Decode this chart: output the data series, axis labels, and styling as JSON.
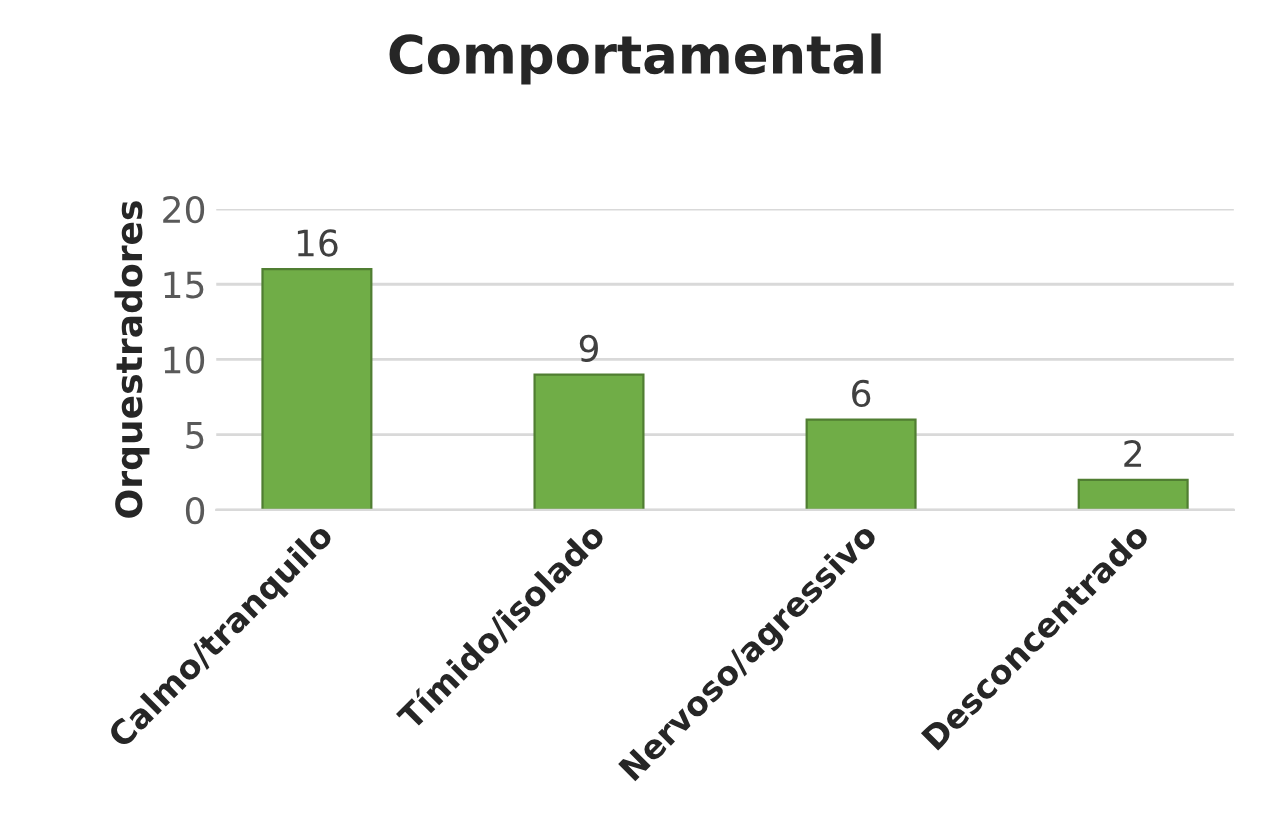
{
  "chart_data": {
    "type": "bar",
    "title": "Comportamental",
    "ylabel": "Orquestradores",
    "categories": [
      "Calmo/tranquilo",
      "Tímido/isolado",
      "Nervoso/agressivo",
      "Desconcentrado"
    ],
    "values": [
      16,
      9,
      6,
      2
    ],
    "color": "#70ad47",
    "ylim": [
      0,
      20
    ],
    "yticks": [
      0,
      5,
      10,
      15,
      20
    ],
    "grid": "y",
    "data_labels": true
  }
}
